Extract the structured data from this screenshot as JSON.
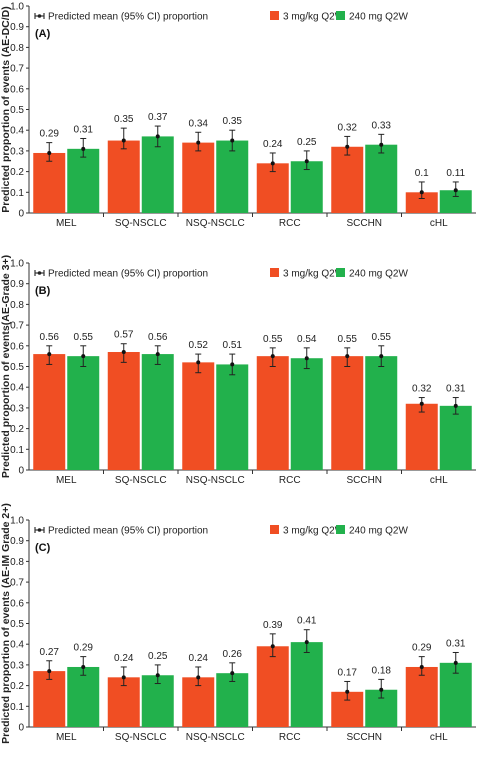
{
  "legend": {
    "ci_label": "Predicted mean (95% CI) proportion",
    "series": [
      {
        "name": "3 mg/kg Q2W",
        "color": "#f04e23"
      },
      {
        "name": "240 mg Q2W",
        "color": "#22b14c"
      }
    ]
  },
  "chart_data": [
    {
      "type": "bar",
      "panel_label": "(A)",
      "ylabel": "Predicted proportion of events (AE-DC/D)",
      "ylim": [
        0,
        1
      ],
      "yticks": [
        "0",
        "0.1",
        "0.2",
        "0.3",
        "0.4",
        "0.5",
        "0.6",
        "0.7",
        "0.8",
        "0.9",
        "1.0"
      ],
      "categories": [
        "MEL",
        "SQ-NSCLC",
        "NSQ-NSCLC",
        "RCC",
        "SCCHN",
        "cHL"
      ],
      "legend_position": "top",
      "series": [
        {
          "name": "3 mg/kg Q2W",
          "values": [
            0.29,
            0.35,
            0.34,
            0.24,
            0.32,
            0.1
          ],
          "labels": [
            "0.29",
            "0.35",
            "0.34",
            "0.24",
            "0.32",
            "0.1"
          ],
          "ci_low": [
            0.25,
            0.31,
            0.3,
            0.2,
            0.28,
            0.07
          ],
          "ci_high": [
            0.34,
            0.41,
            0.39,
            0.29,
            0.37,
            0.15
          ]
        },
        {
          "name": "240 mg Q2W",
          "values": [
            0.31,
            0.37,
            0.35,
            0.25,
            0.33,
            0.11
          ],
          "labels": [
            "0.31",
            "0.37",
            "0.35",
            "0.25",
            "0.33",
            "0.11"
          ],
          "ci_low": [
            0.27,
            0.32,
            0.3,
            0.21,
            0.29,
            0.08
          ],
          "ci_high": [
            0.36,
            0.42,
            0.4,
            0.3,
            0.38,
            0.15
          ]
        }
      ]
    },
    {
      "type": "bar",
      "panel_label": "(B)",
      "ylabel": "Predicted proportion of events(AE-Grade 3+)",
      "ylim": [
        0,
        1
      ],
      "yticks": [
        "0",
        "0.1",
        "0.2",
        "0.3",
        "0.4",
        "0.5",
        "0.6",
        "0.7",
        "0.8",
        "0.9",
        "1.0"
      ],
      "categories": [
        "MEL",
        "SQ-NSCLC",
        "NSQ-NSCLC",
        "RCC",
        "SCCHN",
        "cHL"
      ],
      "legend_position": "top",
      "series": [
        {
          "name": "3 mg/kg Q2W",
          "values": [
            0.56,
            0.57,
            0.52,
            0.55,
            0.55,
            0.32
          ],
          "labels": [
            "0.56",
            "0.57",
            "0.52",
            "0.55",
            "0.55",
            "0.32"
          ],
          "ci_low": [
            0.51,
            0.52,
            0.47,
            0.5,
            0.5,
            0.28
          ],
          "ci_high": [
            0.6,
            0.61,
            0.56,
            0.59,
            0.59,
            0.35
          ]
        },
        {
          "name": "240 mg Q2W",
          "values": [
            0.55,
            0.56,
            0.51,
            0.54,
            0.55,
            0.31
          ],
          "labels": [
            "0.55",
            "0.56",
            "0.51",
            "0.54",
            "0.55",
            "0.31"
          ],
          "ci_low": [
            0.5,
            0.51,
            0.46,
            0.49,
            0.5,
            0.27
          ],
          "ci_high": [
            0.6,
            0.6,
            0.56,
            0.59,
            0.6,
            0.35
          ]
        }
      ]
    },
    {
      "type": "bar",
      "panel_label": "(C)",
      "ylabel": "Predicted proportion of events (AE-IM Grade 2+)",
      "ylim": [
        0,
        1
      ],
      "yticks": [
        "0",
        "0.1",
        "0.2",
        "0.3",
        "0.4",
        "0.5",
        "0.6",
        "0.7",
        "0.8",
        "0.9",
        "1.0"
      ],
      "categories": [
        "MEL",
        "SQ-NSCLC",
        "NSQ-NSCLC",
        "RCC",
        "SCCHN",
        "cHL"
      ],
      "legend_position": "top",
      "series": [
        {
          "name": "3 mg/kg Q2W",
          "values": [
            0.27,
            0.24,
            0.24,
            0.39,
            0.17,
            0.29
          ],
          "labels": [
            "0.27",
            "0.24",
            "0.24",
            "0.39",
            "0.17",
            "0.29"
          ],
          "ci_low": [
            0.23,
            0.2,
            0.2,
            0.34,
            0.13,
            0.25
          ],
          "ci_high": [
            0.32,
            0.29,
            0.29,
            0.45,
            0.22,
            0.34
          ]
        },
        {
          "name": "240 mg Q2W",
          "values": [
            0.29,
            0.25,
            0.26,
            0.41,
            0.18,
            0.31
          ],
          "labels": [
            "0.29",
            "0.25",
            "0.26",
            "0.41",
            "0.18",
            "0.31"
          ],
          "ci_low": [
            0.25,
            0.21,
            0.22,
            0.36,
            0.14,
            0.26
          ],
          "ci_high": [
            0.34,
            0.3,
            0.31,
            0.47,
            0.23,
            0.36
          ]
        }
      ]
    }
  ]
}
